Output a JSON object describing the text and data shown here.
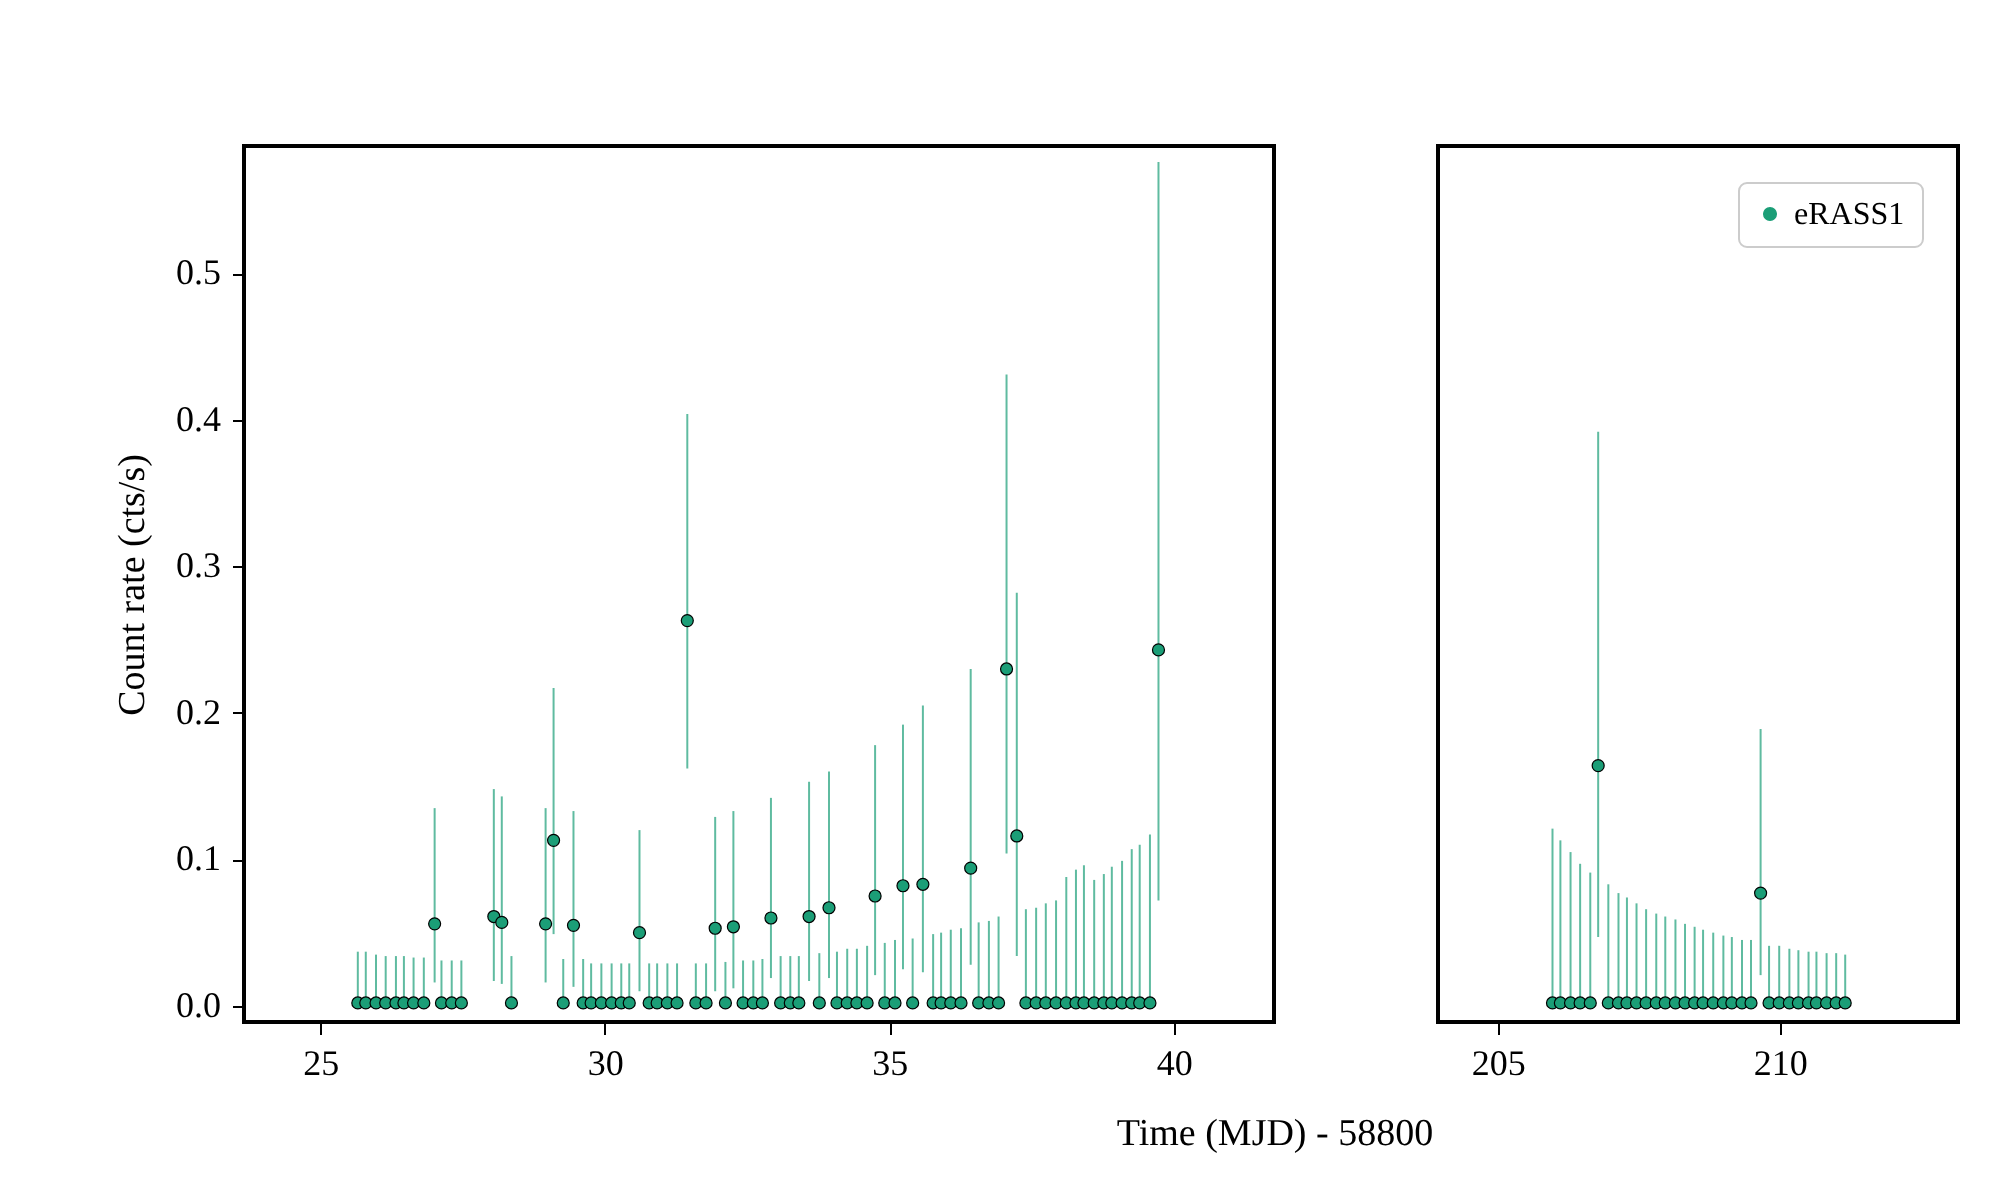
{
  "chart_data": [
    {
      "type": "scatter",
      "ylabel": "Count rate (cts/s)",
      "xlabel": "Time (MJD) - 58800",
      "xlim": [
        23.66,
        41.76
      ],
      "xticks": [
        25,
        30,
        35,
        40
      ],
      "ylim": [
        -0.011,
        0.587
      ],
      "yticks": [
        {
          "value": 0,
          "label": "0.0"
        },
        {
          "value": 0.1,
          "label": "0.1"
        },
        {
          "value": 0.2,
          "label": "0.2"
        },
        {
          "value": 0.3,
          "label": "0.3"
        },
        {
          "value": 0.4,
          "label": "0.4"
        },
        {
          "value": 0.5,
          "label": "0.5"
        }
      ],
      "grid": false,
      "marker": "circle",
      "x": [
        25.66,
        25.8,
        25.98,
        26.15,
        26.33,
        26.47,
        26.64,
        26.82,
        27.01,
        27.13,
        27.31,
        27.48,
        28.05,
        28.19,
        28.36,
        28.96,
        29.1,
        29.27,
        29.45,
        29.62,
        29.76,
        29.94,
        30.12,
        30.29,
        30.43,
        30.61,
        30.78,
        30.92,
        31.1,
        31.27,
        31.45,
        31.6,
        31.78,
        31.94,
        32.12,
        32.26,
        32.43,
        32.61,
        32.77,
        32.92,
        33.09,
        33.26,
        33.41,
        33.59,
        33.77,
        33.94,
        34.08,
        34.26,
        34.43,
        34.61,
        34.75,
        34.92,
        35.1,
        35.24,
        35.41,
        35.59,
        35.77,
        35.91,
        36.08,
        36.26,
        36.43,
        36.57,
        36.75,
        36.92,
        37.06,
        37.24,
        37.4,
        37.58,
        37.75,
        37.93,
        38.11,
        38.28,
        38.42,
        38.6,
        38.77,
        38.91,
        39.09,
        39.26,
        39.4,
        39.58,
        39.73
      ],
      "series": [
        {
          "color": "#1b9e77",
          "values": [
            0.002,
            0.002,
            0.002,
            0.002,
            0.002,
            0.002,
            0.002,
            0.002,
            0.056,
            0.002,
            0.002,
            0.002,
            0.061,
            0.057,
            0.002,
            0.056,
            0.113,
            0.002,
            0.055,
            0.002,
            0.002,
            0.002,
            0.002,
            0.002,
            0.002,
            0.05,
            0.002,
            0.002,
            0.002,
            0.002,
            0.263,
            0.002,
            0.002,
            0.053,
            0.002,
            0.054,
            0.002,
            0.002,
            0.002,
            0.06,
            0.002,
            0.002,
            0.002,
            0.061,
            0.002,
            0.067,
            0.002,
            0.002,
            0.002,
            0.002,
            0.075,
            0.002,
            0.002,
            0.082,
            0.002,
            0.083,
            0.002,
            0.002,
            0.002,
            0.002,
            0.094,
            0.002,
            0.002,
            0.002,
            0.23,
            0.116,
            0.002,
            0.002,
            0.002,
            0.002,
            0.002,
            0.002,
            0.002,
            0.002,
            0.002,
            0.002,
            0.002,
            0.002,
            0.002,
            0.002,
            0.243
          ],
          "errors": [
            [
              0.002,
              0.037
            ],
            [
              0.002,
              0.037
            ],
            [
              0.002,
              0.035
            ],
            [
              0.002,
              0.034
            ],
            [
              0.002,
              0.034
            ],
            [
              0.002,
              0.034
            ],
            [
              0.002,
              0.033
            ],
            [
              0.002,
              0.033
            ],
            [
              0.016,
              0.135
            ],
            [
              0.002,
              0.031
            ],
            [
              0.002,
              0.031
            ],
            [
              0.002,
              0.031
            ],
            [
              0.017,
              0.148
            ],
            [
              0.015,
              0.143
            ],
            [
              0.002,
              0.034
            ],
            [
              0.016,
              0.135
            ],
            [
              0.049,
              0.217
            ],
            [
              0.002,
              0.032
            ],
            [
              0.013,
              0.133
            ],
            [
              0.002,
              0.032
            ],
            [
              0.002,
              0.029
            ],
            [
              0.002,
              0.029
            ],
            [
              0.002,
              0.029
            ],
            [
              0.002,
              0.029
            ],
            [
              0.002,
              0.029
            ],
            [
              0.01,
              0.12
            ],
            [
              0.002,
              0.029
            ],
            [
              0.002,
              0.029
            ],
            [
              0.002,
              0.029
            ],
            [
              0.002,
              0.029
            ],
            [
              0.162,
              0.404
            ],
            [
              0.002,
              0.029
            ],
            [
              0.002,
              0.029
            ],
            [
              0.01,
              0.129
            ],
            [
              0.002,
              0.03
            ],
            [
              0.012,
              0.133
            ],
            [
              0.002,
              0.031
            ],
            [
              0.002,
              0.031
            ],
            [
              0.002,
              0.032
            ],
            [
              0.019,
              0.142
            ],
            [
              0.002,
              0.034
            ],
            [
              0.002,
              0.034
            ],
            [
              0.002,
              0.034
            ],
            [
              0.017,
              0.153
            ],
            [
              0.002,
              0.036
            ],
            [
              0.019,
              0.16
            ],
            [
              0.002,
              0.037
            ],
            [
              0.002,
              0.039
            ],
            [
              0.002,
              0.039
            ],
            [
              0.002,
              0.041
            ],
            [
              0.021,
              0.178
            ],
            [
              0.002,
              0.043
            ],
            [
              0.002,
              0.045
            ],
            [
              0.025,
              0.192
            ],
            [
              0.002,
              0.046
            ],
            [
              0.023,
              0.205
            ],
            [
              0.002,
              0.049
            ],
            [
              0.002,
              0.05
            ],
            [
              0.002,
              0.052
            ],
            [
              0.002,
              0.053
            ],
            [
              0.028,
              0.23
            ],
            [
              0.002,
              0.057
            ],
            [
              0.002,
              0.058
            ],
            [
              0.002,
              0.061
            ],
            [
              0.104,
              0.431
            ],
            [
              0.034,
              0.282
            ],
            [
              0.002,
              0.066
            ],
            [
              0.002,
              0.067
            ],
            [
              0.002,
              0.07
            ],
            [
              0.002,
              0.072
            ],
            [
              0.002,
              0.088
            ],
            [
              0.002,
              0.093
            ],
            [
              0.002,
              0.096
            ],
            [
              0.002,
              0.086
            ],
            [
              0.002,
              0.09
            ],
            [
              0.002,
              0.095
            ],
            [
              0.002,
              0.099
            ],
            [
              0.002,
              0.107
            ],
            [
              0.002,
              0.11
            ],
            [
              0.002,
              0.117
            ],
            [
              0.072,
              0.576
            ]
          ]
        }
      ]
    },
    {
      "type": "scatter",
      "xlim": [
        203.94,
        213.16
      ],
      "xticks": [
        205,
        210
      ],
      "ylim": [
        -0.011,
        0.587
      ],
      "tick_labels": "x",
      "grid": false,
      "legend": "top right",
      "marker": "circle",
      "x": [
        205.97,
        206.11,
        206.29,
        206.46,
        206.64,
        206.78,
        206.96,
        207.14,
        207.29,
        207.46,
        207.63,
        207.81,
        207.97,
        208.15,
        208.32,
        208.49,
        208.64,
        208.82,
        209.0,
        209.15,
        209.33,
        209.49,
        209.66,
        209.81,
        209.99,
        210.17,
        210.33,
        210.51,
        210.65,
        210.83,
        211.0,
        211.16
      ],
      "series": [
        {
          "name": "eRASS1",
          "color": "#1b9e77",
          "values": [
            0.002,
            0.002,
            0.002,
            0.002,
            0.002,
            0.164,
            0.002,
            0.002,
            0.002,
            0.002,
            0.002,
            0.002,
            0.002,
            0.002,
            0.002,
            0.002,
            0.002,
            0.002,
            0.002,
            0.002,
            0.002,
            0.002,
            0.077,
            0.002,
            0.002,
            0.002,
            0.002,
            0.002,
            0.002,
            0.002,
            0.002,
            0.002
          ],
          "errors": [
            [
              0.002,
              0.121
            ],
            [
              0.002,
              0.113
            ],
            [
              0.002,
              0.105
            ],
            [
              0.002,
              0.097
            ],
            [
              0.002,
              0.091
            ],
            [
              0.047,
              0.392
            ],
            [
              0.002,
              0.083
            ],
            [
              0.002,
              0.077
            ],
            [
              0.002,
              0.074
            ],
            [
              0.002,
              0.07
            ],
            [
              0.002,
              0.066
            ],
            [
              0.002,
              0.063
            ],
            [
              0.002,
              0.061
            ],
            [
              0.002,
              0.059
            ],
            [
              0.002,
              0.056
            ],
            [
              0.002,
              0.054
            ],
            [
              0.002,
              0.052
            ],
            [
              0.002,
              0.05
            ],
            [
              0.002,
              0.048
            ],
            [
              0.002,
              0.047
            ],
            [
              0.002,
              0.045
            ],
            [
              0.002,
              0.045
            ],
            [
              0.021,
              0.189
            ],
            [
              0.002,
              0.041
            ],
            [
              0.002,
              0.041
            ],
            [
              0.002,
              0.039
            ],
            [
              0.002,
              0.038
            ],
            [
              0.002,
              0.037
            ],
            [
              0.002,
              0.037
            ],
            [
              0.002,
              0.036
            ],
            [
              0.002,
              0.036
            ],
            [
              0.002,
              0.035
            ]
          ]
        }
      ]
    }
  ]
}
